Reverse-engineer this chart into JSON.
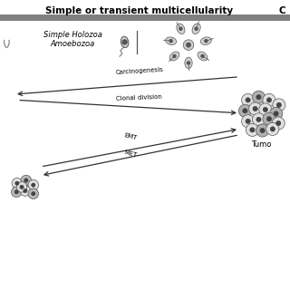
{
  "title": "Simple or transient multicellularity",
  "title_right": "C",
  "header_bar_color": "#808080",
  "bg_color": "#ffffff",
  "arrow_color": "#333333",
  "label_carcinogenesis": "Carcinogenesis",
  "label_clonal": "Clonal division",
  "label_emt": "EMT",
  "label_met": "MET",
  "label_holozoa": "Simple Holozoa\nAmoebozoa",
  "label_tumor": "Tumo",
  "title_fontsize": 7.5,
  "label_fontsize": 6.0,
  "annotation_fontsize": 5.0,
  "figsize": [
    3.2,
    3.2
  ],
  "dpi": 100
}
